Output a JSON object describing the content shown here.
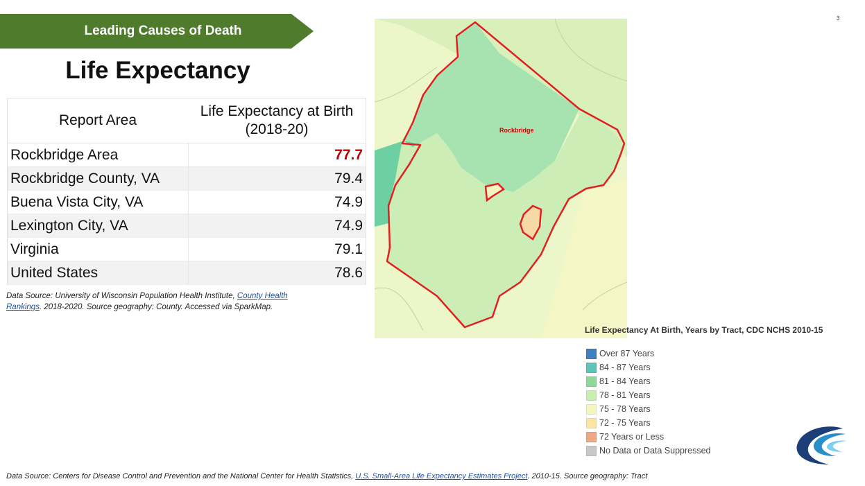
{
  "banner": {
    "text": "Leading Causes of Death",
    "color": "#4e7b2c"
  },
  "title": "Life Expectancy",
  "page_number": "3",
  "table": {
    "header_area": "Report Area",
    "header_value": "Life Expectancy at Birth (2018-20)",
    "rows": [
      {
        "area": "Rockbridge Area",
        "value": "77.7",
        "highlight": true
      },
      {
        "area": "Rockbridge County, VA",
        "value": "79.4"
      },
      {
        "area": "Buena Vista City, VA",
        "value": "74.9"
      },
      {
        "area": "Lexington City, VA",
        "value": "74.9"
      },
      {
        "area": "Virginia",
        "value": "79.1"
      },
      {
        "area": "United States",
        "value": "78.6"
      }
    ]
  },
  "source1": {
    "prefix": "Data Source: University of Wisconsin Population Health Institute, ",
    "link": "County Health Rankings",
    "suffix": ". 2018-2020. Source geography: County. Accessed via SparkMap."
  },
  "map": {
    "label": "Rockbridge",
    "boundary_color": "#e02020"
  },
  "legend": {
    "title": "Life Expectancy At Birth, Years by Tract, CDC NCHS 2010-15",
    "items": [
      {
        "label": "Over 87 Years",
        "color": "#3f7fc2"
      },
      {
        "label": "84 - 87 Years",
        "color": "#5cc5b8"
      },
      {
        "label": "81 - 84 Years",
        "color": "#8fd89a"
      },
      {
        "label": "78 - 81 Years",
        "color": "#c9efb0"
      },
      {
        "label": "75 - 78 Years",
        "color": "#f4f6bf"
      },
      {
        "label": "72 - 75 Years",
        "color": "#fbe5a2"
      },
      {
        "label": "72 Years or Less",
        "color": "#f0a884"
      },
      {
        "label": "No Data or Data Suppressed",
        "color": "#c8c8c8"
      }
    ]
  },
  "source2": {
    "prefix": "Data Source: Centers for Disease Control and Prevention and the National Center for Health Statistics, ",
    "link": "U.S. Small-Area Life Expectancy Estimates Project",
    "suffix": ". 2010-15. Source geography: Tract"
  }
}
